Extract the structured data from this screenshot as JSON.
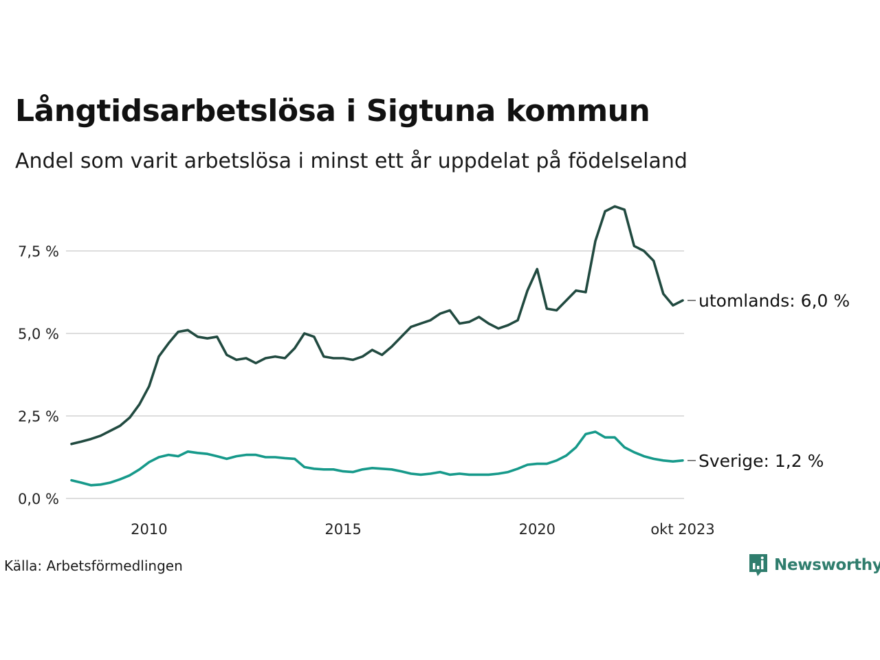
{
  "title": "Långtidsarbetslösa i Sigtuna kommun",
  "subtitle": "Andel som varit arbetslösa i minst ett år uppdelat på födelseland",
  "source": "Källa: Arbetsförmedlingen",
  "brand": "Newsworthy",
  "colors": {
    "utomlands": "#214a40",
    "sverige": "#16998a",
    "grid": "#dddddd",
    "brand": "#2f7d6d"
  },
  "chart_data": {
    "type": "line",
    "title": "Långtidsarbetslösa i Sigtuna kommun",
    "xlabel": "",
    "ylabel": "",
    "xlim": [
      2008.0,
      2023.75
    ],
    "ylim": [
      0,
      9
    ],
    "grid": true,
    "yticks": [
      {
        "value": 0,
        "label": "0,0 %"
      },
      {
        "value": 2.5,
        "label": "2,5 %"
      },
      {
        "value": 5,
        "label": "5,0 %"
      },
      {
        "value": 7.5,
        "label": "7,5 %"
      }
    ],
    "xticks": [
      {
        "value": 2010,
        "label": "2010"
      },
      {
        "value": 2015,
        "label": "2015"
      },
      {
        "value": 2020,
        "label": "2020"
      },
      {
        "value": 2023.75,
        "label": "okt 2023"
      }
    ],
    "series": [
      {
        "name": "utomlands",
        "end_label": "utomlands: 6,0 %",
        "color": "#214a40",
        "x": [
          2008.0,
          2008.25,
          2008.5,
          2008.75,
          2009.0,
          2009.25,
          2009.5,
          2009.75,
          2010.0,
          2010.25,
          2010.5,
          2010.75,
          2011.0,
          2011.25,
          2011.5,
          2011.75,
          2012.0,
          2012.25,
          2012.5,
          2012.75,
          2013.0,
          2013.25,
          2013.5,
          2013.75,
          2014.0,
          2014.25,
          2014.5,
          2014.75,
          2015.0,
          2015.25,
          2015.5,
          2015.75,
          2016.0,
          2016.25,
          2016.5,
          2016.75,
          2017.0,
          2017.25,
          2017.5,
          2017.75,
          2018.0,
          2018.25,
          2018.5,
          2018.75,
          2019.0,
          2019.25,
          2019.5,
          2019.75,
          2020.0,
          2020.25,
          2020.5,
          2020.75,
          2021.0,
          2021.25,
          2021.5,
          2021.75,
          2022.0,
          2022.25,
          2022.5,
          2022.75,
          2023.0,
          2023.25,
          2023.5,
          2023.75
        ],
        "values": [
          1.65,
          1.72,
          1.8,
          1.9,
          2.05,
          2.2,
          2.45,
          2.85,
          3.4,
          4.3,
          4.7,
          5.05,
          5.1,
          4.9,
          4.85,
          4.9,
          4.35,
          4.2,
          4.25,
          4.1,
          4.25,
          4.3,
          4.25,
          4.55,
          5.0,
          4.9,
          4.3,
          4.25,
          4.25,
          4.2,
          4.3,
          4.5,
          4.35,
          4.6,
          4.9,
          5.2,
          5.3,
          5.4,
          5.6,
          5.7,
          5.3,
          5.35,
          5.5,
          5.3,
          5.15,
          5.25,
          5.4,
          6.3,
          6.95,
          5.75,
          5.7,
          6.0,
          6.3,
          6.25,
          7.8,
          8.7,
          8.85,
          8.75,
          7.65,
          7.5,
          7.2,
          6.2,
          5.85,
          6.0
        ]
      },
      {
        "name": "Sverige",
        "end_label": "Sverige: 1,2 %",
        "color": "#16998a",
        "x": [
          2008.0,
          2008.25,
          2008.5,
          2008.75,
          2009.0,
          2009.25,
          2009.5,
          2009.75,
          2010.0,
          2010.25,
          2010.5,
          2010.75,
          2011.0,
          2011.25,
          2011.5,
          2011.75,
          2012.0,
          2012.25,
          2012.5,
          2012.75,
          2013.0,
          2013.25,
          2013.5,
          2013.75,
          2014.0,
          2014.25,
          2014.5,
          2014.75,
          2015.0,
          2015.25,
          2015.5,
          2015.75,
          2016.0,
          2016.25,
          2016.5,
          2016.75,
          2017.0,
          2017.25,
          2017.5,
          2017.75,
          2018.0,
          2018.25,
          2018.5,
          2018.75,
          2019.0,
          2019.25,
          2019.5,
          2019.75,
          2020.0,
          2020.25,
          2020.5,
          2020.75,
          2021.0,
          2021.25,
          2021.5,
          2021.75,
          2022.0,
          2022.25,
          2022.5,
          2022.75,
          2023.0,
          2023.25,
          2023.5,
          2023.75
        ],
        "values": [
          0.55,
          0.48,
          0.4,
          0.42,
          0.48,
          0.58,
          0.7,
          0.88,
          1.1,
          1.25,
          1.32,
          1.28,
          1.42,
          1.38,
          1.35,
          1.28,
          1.2,
          1.28,
          1.32,
          1.32,
          1.25,
          1.25,
          1.22,
          1.2,
          0.95,
          0.9,
          0.88,
          0.88,
          0.82,
          0.8,
          0.88,
          0.92,
          0.9,
          0.88,
          0.82,
          0.75,
          0.72,
          0.75,
          0.8,
          0.72,
          0.75,
          0.72,
          0.72,
          0.72,
          0.75,
          0.8,
          0.9,
          1.02,
          1.05,
          1.05,
          1.15,
          1.3,
          1.55,
          1.95,
          2.02,
          1.85,
          1.85,
          1.55,
          1.4,
          1.28,
          1.2,
          1.15,
          1.12,
          1.15
        ]
      }
    ]
  }
}
